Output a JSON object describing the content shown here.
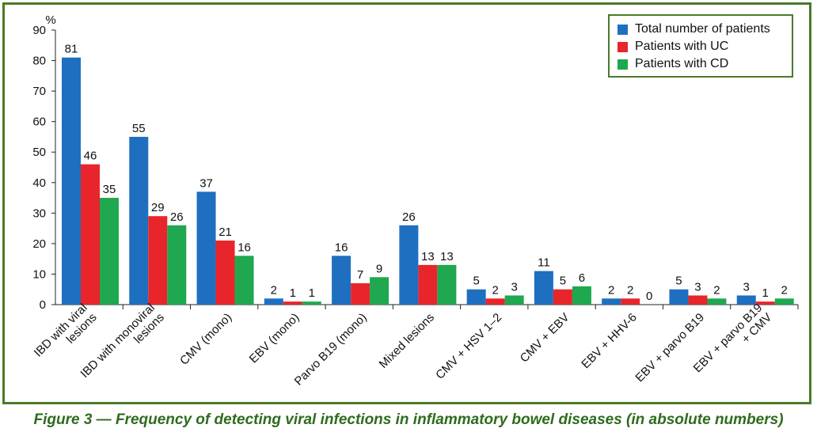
{
  "caption": "Figure 3 — Frequency of detecting viral infections in inflammatory bowel diseases (in absolute numbers)",
  "chart_data": {
    "type": "bar",
    "ylabel": "%",
    "ylim": [
      0,
      90
    ],
    "yticks": [
      0,
      10,
      20,
      30,
      40,
      50,
      60,
      70,
      80,
      90
    ],
    "grid": false,
    "legend_position": "top-right",
    "categories": [
      [
        "IBD with viral",
        "lesions"
      ],
      [
        "IBD with monoviral",
        "lesions"
      ],
      [
        "CMV (mono)"
      ],
      [
        "EBV (mono)"
      ],
      [
        "Parvo B19 (mono)"
      ],
      [
        "Mixed lesions"
      ],
      [
        "CMV + HSV 1–2"
      ],
      [
        "CMV + EBV"
      ],
      [
        "EBV + HHV-6"
      ],
      [
        "EBV + parvo B19"
      ],
      [
        "EBV + parvo B19",
        "+ CMV"
      ]
    ],
    "series": [
      {
        "name": "Total number of patients",
        "color": "#1f6fc0",
        "values": [
          81,
          55,
          37,
          2,
          16,
          26,
          5,
          11,
          2,
          5,
          3
        ]
      },
      {
        "name": "Patients with UC",
        "color": "#e8252b",
        "values": [
          46,
          29,
          21,
          1,
          7,
          13,
          2,
          5,
          2,
          3,
          1
        ]
      },
      {
        "name": "Patients with CD",
        "color": "#1fa84f",
        "values": [
          35,
          26,
          16,
          1,
          9,
          13,
          3,
          6,
          0,
          2,
          2
        ]
      }
    ]
  }
}
